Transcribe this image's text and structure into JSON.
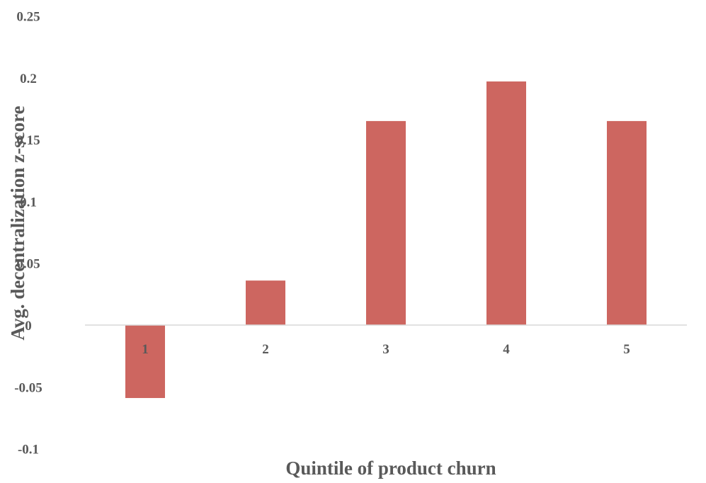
{
  "chart_data": {
    "type": "bar",
    "title": "",
    "xlabel": "Quintile of product churn",
    "ylabel": "Avg. decentralization z-score",
    "categories": [
      "1",
      "2",
      "3",
      "4",
      "5"
    ],
    "values": [
      -0.059,
      0.036,
      0.165,
      0.197,
      0.165
    ],
    "ylim": [
      -0.1,
      0.25
    ],
    "yticks": [
      0.25,
      0.2,
      0.15,
      0.1,
      0.05,
      0,
      -0.05,
      -0.1
    ],
    "ytick_labels": [
      "0.25",
      "0.2",
      "0.15",
      "0.1",
      "0.05",
      "0",
      "-0.05",
      "-0.1"
    ],
    "grid": false,
    "legend": "none",
    "bar_color": "#cd6660",
    "axis_color": "#d9d9d9",
    "text_color": "#595959"
  }
}
